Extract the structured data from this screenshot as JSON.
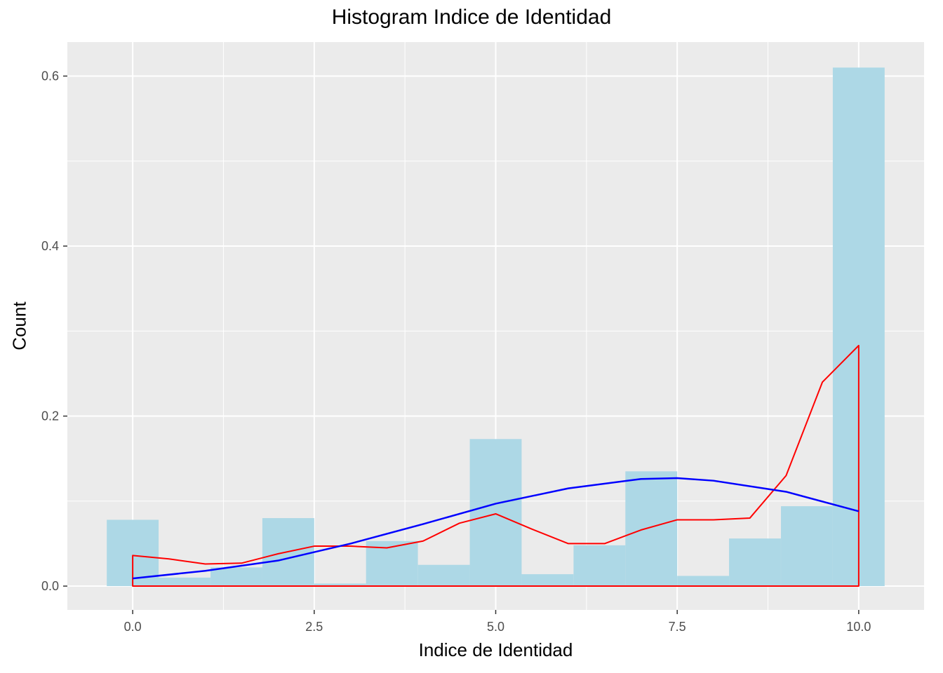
{
  "chart_data": {
    "type": "bar",
    "title": "Histogram Indice de Identidad",
    "xlabel": "Indice de Identidad",
    "ylabel": "Count",
    "xlim": [
      -0.9,
      10.9
    ],
    "ylim": [
      -0.028,
      0.64
    ],
    "x_ticks": [
      0,
      2.5,
      5,
      7.5,
      10
    ],
    "x_tick_labels": [
      "0.0",
      "2.5",
      "5.0",
      "7.5",
      "10.0"
    ],
    "y_ticks": [
      0,
      0.2,
      0.4,
      0.6
    ],
    "y_tick_labels": [
      "0.0",
      "0.2",
      "0.4",
      "0.6"
    ],
    "grid": true,
    "bin_width": 0.714,
    "bins": [
      {
        "x": 0.0,
        "value": 0.078
      },
      {
        "x": 0.714,
        "value": 0.01
      },
      {
        "x": 1.429,
        "value": 0.022
      },
      {
        "x": 2.143,
        "value": 0.08
      },
      {
        "x": 2.857,
        "value": 0.003
      },
      {
        "x": 3.571,
        "value": 0.053
      },
      {
        "x": 4.286,
        "value": 0.025
      },
      {
        "x": 5.0,
        "value": 0.173
      },
      {
        "x": 5.714,
        "value": 0.014
      },
      {
        "x": 6.429,
        "value": 0.048
      },
      {
        "x": 7.143,
        "value": 0.135
      },
      {
        "x": 7.857,
        "value": 0.012
      },
      {
        "x": 8.571,
        "value": 0.056
      },
      {
        "x": 9.286,
        "value": 0.094
      },
      {
        "x": 10.0,
        "value": 0.61
      }
    ],
    "density": {
      "x": [
        0,
        0.5,
        1.0,
        1.5,
        2.0,
        2.5,
        3.0,
        3.5,
        4.0,
        4.5,
        5.0,
        5.5,
        6.0,
        6.5,
        7.0,
        7.5,
        8.0,
        8.5,
        9.0,
        9.5,
        10.0
      ],
      "y": [
        0.036,
        0.032,
        0.026,
        0.027,
        0.038,
        0.047,
        0.047,
        0.045,
        0.053,
        0.074,
        0.085,
        0.067,
        0.05,
        0.05,
        0.066,
        0.078,
        0.078,
        0.08,
        0.13,
        0.24,
        0.283
      ]
    },
    "smooth": {
      "x": [
        0,
        1,
        2,
        3,
        4,
        5,
        6,
        7,
        7.5,
        8,
        9,
        10
      ],
      "y": [
        0.009,
        0.018,
        0.03,
        0.05,
        0.073,
        0.097,
        0.115,
        0.126,
        0.127,
        0.124,
        0.111,
        0.088
      ]
    },
    "colors": {
      "panel": "#ebebeb",
      "grid": "#ffffff",
      "bars": "#add8e6",
      "density": "#ff0000",
      "smooth": "#0000ff",
      "ticks": "#4d4d4d"
    }
  }
}
